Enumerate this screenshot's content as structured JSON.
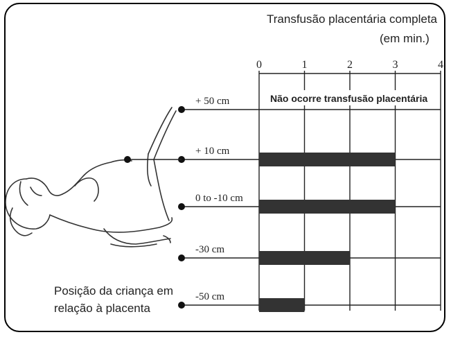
{
  "chart_data": {
    "type": "bar",
    "orientation": "horizontal",
    "title": "Transfusão placentária completa",
    "title_unit": "(em min.)",
    "categories": [
      "+ 50 cm",
      "+ 10 cm",
      "0 to -10 cm",
      "-30 cm",
      "-50 cm"
    ],
    "values": [
      0,
      3,
      3,
      2,
      1
    ],
    "no_transfusion_label": "Não ocorre transfusão placentária",
    "xlim": [
      0,
      4
    ],
    "xticks": [
      "0",
      "1",
      "2",
      "3",
      "4"
    ],
    "grid": true,
    "bar_color": "#333333",
    "position_label": [
      "Posição da criança em",
      "relação à placenta"
    ]
  },
  "illustration": {
    "icon": "reclining-mother-figure-icon"
  }
}
